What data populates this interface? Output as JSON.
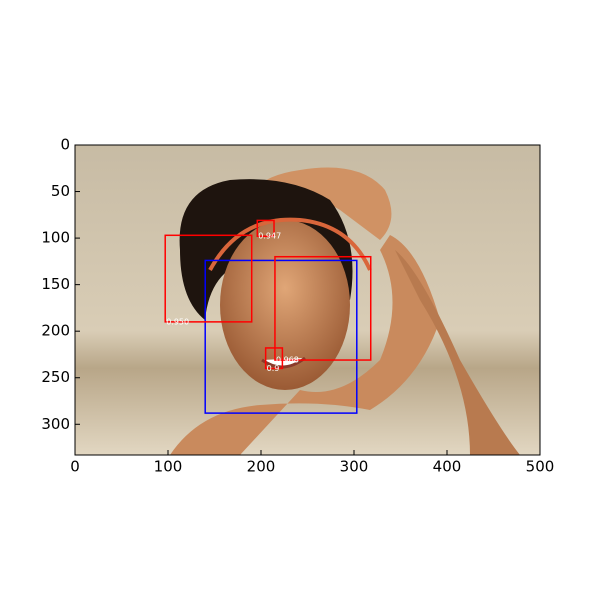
{
  "chart_data": {
    "type": "image-detections",
    "xlim": [
      0,
      500
    ],
    "ylim": [
      333,
      0
    ],
    "xticks": [
      0,
      100,
      200,
      300,
      400,
      500
    ],
    "yticks": [
      0,
      50,
      100,
      150,
      200,
      250,
      300
    ],
    "boxes": [
      {
        "color": "#0000ff",
        "x": [
          140,
          303
        ],
        "y": [
          124,
          288
        ]
      },
      {
        "color": "#ff0000",
        "x": [
          97,
          190
        ],
        "y": [
          97,
          190
        ],
        "label": "0.950"
      },
      {
        "color": "#ff0000",
        "x": [
          196,
          214
        ],
        "y": [
          81,
          98
        ],
        "label": "0.947"
      },
      {
        "color": "#ff0000",
        "x": [
          215,
          318
        ],
        "y": [
          120,
          231
        ],
        "label": "0.968"
      },
      {
        "color": "#ff0000",
        "x": [
          205,
          223
        ],
        "y": [
          218,
          240
        ],
        "label": "0.9"
      }
    ]
  }
}
